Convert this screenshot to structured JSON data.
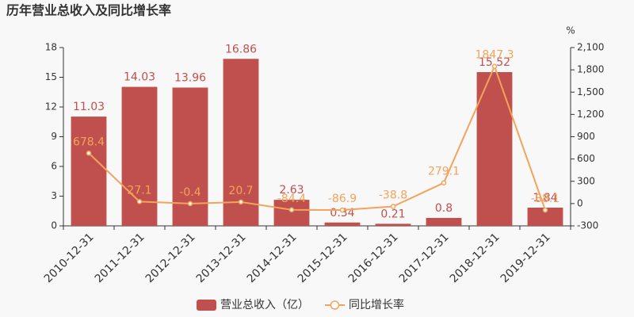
{
  "chart_data": {
    "type": "bar-line",
    "title": "历年营业总收入及同比增长率",
    "categories": [
      "2010-12-31",
      "2011-12-31",
      "2012-12-31",
      "2013-12-31",
      "2014-12-31",
      "2015-12-31",
      "2016-12-31",
      "2017-12-31",
      "2018-12-31",
      "2019-12-31"
    ],
    "series": [
      {
        "name": "营业总收入（亿）",
        "type": "bar",
        "color": "#c0504d",
        "values": [
          11.03,
          14.03,
          13.96,
          16.86,
          2.63,
          0.34,
          0.21,
          0.8,
          15.52,
          1.84
        ]
      },
      {
        "name": "同比增长率",
        "type": "line",
        "color": "#f4a35a",
        "axis": "y2",
        "values": [
          678.4,
          27.1,
          -0.4,
          20.7,
          -84.4,
          -86.9,
          -38.8,
          279.1,
          1847.3,
          -88.1
        ]
      }
    ],
    "ylim": [
      0,
      18
    ],
    "yticks": [
      0,
      3,
      6,
      9,
      12,
      15,
      18
    ],
    "y2lim": [
      -300,
      2100
    ],
    "y2ticks": [
      -300,
      0,
      300,
      600,
      900,
      {
        "value": 1200,
        "label": "1,200"
      },
      {
        "value": 1500,
        "label": "1,500"
      },
      {
        "value": 1800,
        "label": "1,800"
      },
      {
        "value": 2100,
        "label": "2,100"
      }
    ],
    "y2_unit": "%",
    "grid": false
  }
}
